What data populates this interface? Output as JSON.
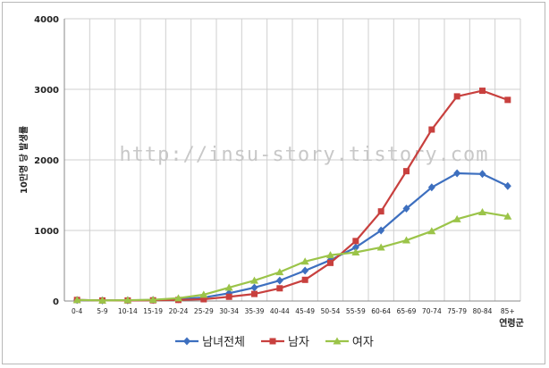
{
  "watermark": "http://insu-story.tistory.com",
  "chart_data": {
    "type": "line",
    "xlabel": "연령군",
    "ylabel": "10만명 당 발생률",
    "ylim": [
      0,
      4000
    ],
    "yticks": [
      0,
      1000,
      2000,
      3000,
      4000
    ],
    "grid": true,
    "legend_position": "bottom",
    "categories": [
      "0-4",
      "5-9",
      "10-14",
      "15-19",
      "20-24",
      "25-29",
      "30-34",
      "35-39",
      "40-44",
      "45-49",
      "50-54",
      "55-59",
      "60-64",
      "65-69",
      "70-74",
      "75-79",
      "80-84",
      "85+"
    ],
    "series": [
      {
        "name": "남녀전체",
        "color": "#3d6fbf",
        "marker": "diamond",
        "values": [
          15,
          8,
          10,
          15,
          25,
          50,
          110,
          190,
          290,
          430,
          580,
          760,
          1000,
          1310,
          1610,
          1810,
          1800,
          1630
        ]
      },
      {
        "name": "남자",
        "color": "#c8403e",
        "marker": "square",
        "values": [
          15,
          8,
          8,
          10,
          15,
          25,
          60,
          100,
          180,
          300,
          540,
          850,
          1270,
          1840,
          2430,
          2900,
          2980,
          2850
        ]
      },
      {
        "name": "여자",
        "color": "#9bc449",
        "marker": "triangle",
        "values": [
          15,
          8,
          12,
          18,
          40,
          90,
          190,
          290,
          410,
          560,
          650,
          690,
          760,
          860,
          990,
          1160,
          1260,
          1200
        ]
      }
    ]
  }
}
